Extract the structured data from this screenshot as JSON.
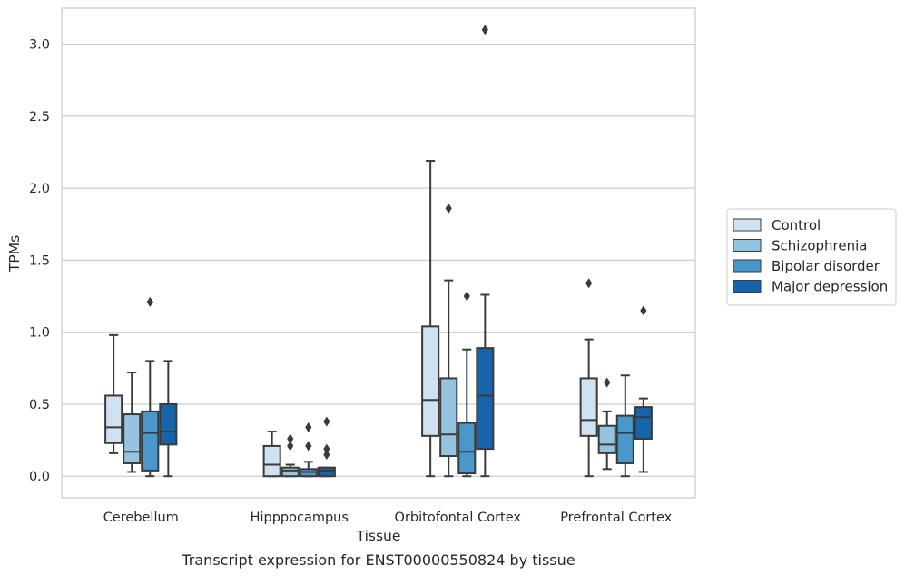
{
  "caption": "Transcript expression for ENST00000550824 by tissue",
  "chart_data": {
    "type": "boxplot",
    "xlabel": "Tissue",
    "ylabel": "TPMs",
    "ylim": [
      -0.15,
      3.25
    ],
    "yticks": [
      "0.0",
      "0.5",
      "1.0",
      "1.5",
      "2.0",
      "2.5",
      "3.0"
    ],
    "grid": "horizontal",
    "legend_position": "right",
    "categories": [
      "Cerebellum",
      "Hipppocampus",
      "Orbitofontal Cortex",
      "Prefrontal Cortex"
    ],
    "series": [
      {
        "name": "Control",
        "color": "#d0e1f2",
        "boxes": [
          {
            "whislo": 0.16,
            "q1": 0.23,
            "med": 0.34,
            "q3": 0.56,
            "whishi": 0.98,
            "fliers": []
          },
          {
            "whislo": 0.0,
            "q1": 0.0,
            "med": 0.08,
            "q3": 0.21,
            "whishi": 0.31,
            "fliers": []
          },
          {
            "whislo": 0.0,
            "q1": 0.28,
            "med": 0.53,
            "q3": 1.04,
            "whishi": 2.19,
            "fliers": []
          },
          {
            "whislo": 0.0,
            "q1": 0.28,
            "med": 0.39,
            "q3": 0.68,
            "whishi": 0.95,
            "fliers": [
              1.34
            ]
          }
        ]
      },
      {
        "name": "Schizophrenia",
        "color": "#94c4df",
        "boxes": [
          {
            "whislo": 0.03,
            "q1": 0.09,
            "med": 0.17,
            "q3": 0.43,
            "whishi": 0.72,
            "fliers": []
          },
          {
            "whislo": 0.0,
            "q1": 0.0,
            "med": 0.04,
            "q3": 0.06,
            "whishi": 0.08,
            "fliers": [
              0.21,
              0.26
            ]
          },
          {
            "whislo": 0.0,
            "q1": 0.14,
            "med": 0.29,
            "q3": 0.68,
            "whishi": 1.36,
            "fliers": [
              1.86
            ]
          },
          {
            "whislo": 0.05,
            "q1": 0.16,
            "med": 0.22,
            "q3": 0.35,
            "whishi": 0.45,
            "fliers": [
              0.65
            ]
          }
        ]
      },
      {
        "name": "Bipolar disorder",
        "color": "#4a98c9",
        "boxes": [
          {
            "whislo": 0.0,
            "q1": 0.04,
            "med": 0.3,
            "q3": 0.45,
            "whishi": 0.8,
            "fliers": [
              1.21
            ]
          },
          {
            "whislo": 0.0,
            "q1": 0.0,
            "med": 0.03,
            "q3": 0.05,
            "whishi": 0.1,
            "fliers": [
              0.21,
              0.34
            ]
          },
          {
            "whislo": 0.0,
            "q1": 0.02,
            "med": 0.17,
            "q3": 0.37,
            "whishi": 0.88,
            "fliers": [
              1.25
            ]
          },
          {
            "whislo": 0.0,
            "q1": 0.09,
            "med": 0.3,
            "q3": 0.42,
            "whishi": 0.7,
            "fliers": []
          }
        ]
      },
      {
        "name": "Major depression",
        "color": "#1764ab",
        "boxes": [
          {
            "whislo": 0.0,
            "q1": 0.22,
            "med": 0.31,
            "q3": 0.5,
            "whishi": 0.8,
            "fliers": []
          },
          {
            "whislo": 0.0,
            "q1": 0.0,
            "med": 0.04,
            "q3": 0.06,
            "whishi": 0.06,
            "fliers": [
              0.15,
              0.19,
              0.38
            ]
          },
          {
            "whislo": 0.0,
            "q1": 0.19,
            "med": 0.56,
            "q3": 0.89,
            "whishi": 1.26,
            "fliers": [
              3.1
            ]
          },
          {
            "whislo": 0.03,
            "q1": 0.26,
            "med": 0.41,
            "q3": 0.48,
            "whishi": 0.54,
            "fliers": [
              1.15
            ]
          }
        ]
      }
    ]
  }
}
